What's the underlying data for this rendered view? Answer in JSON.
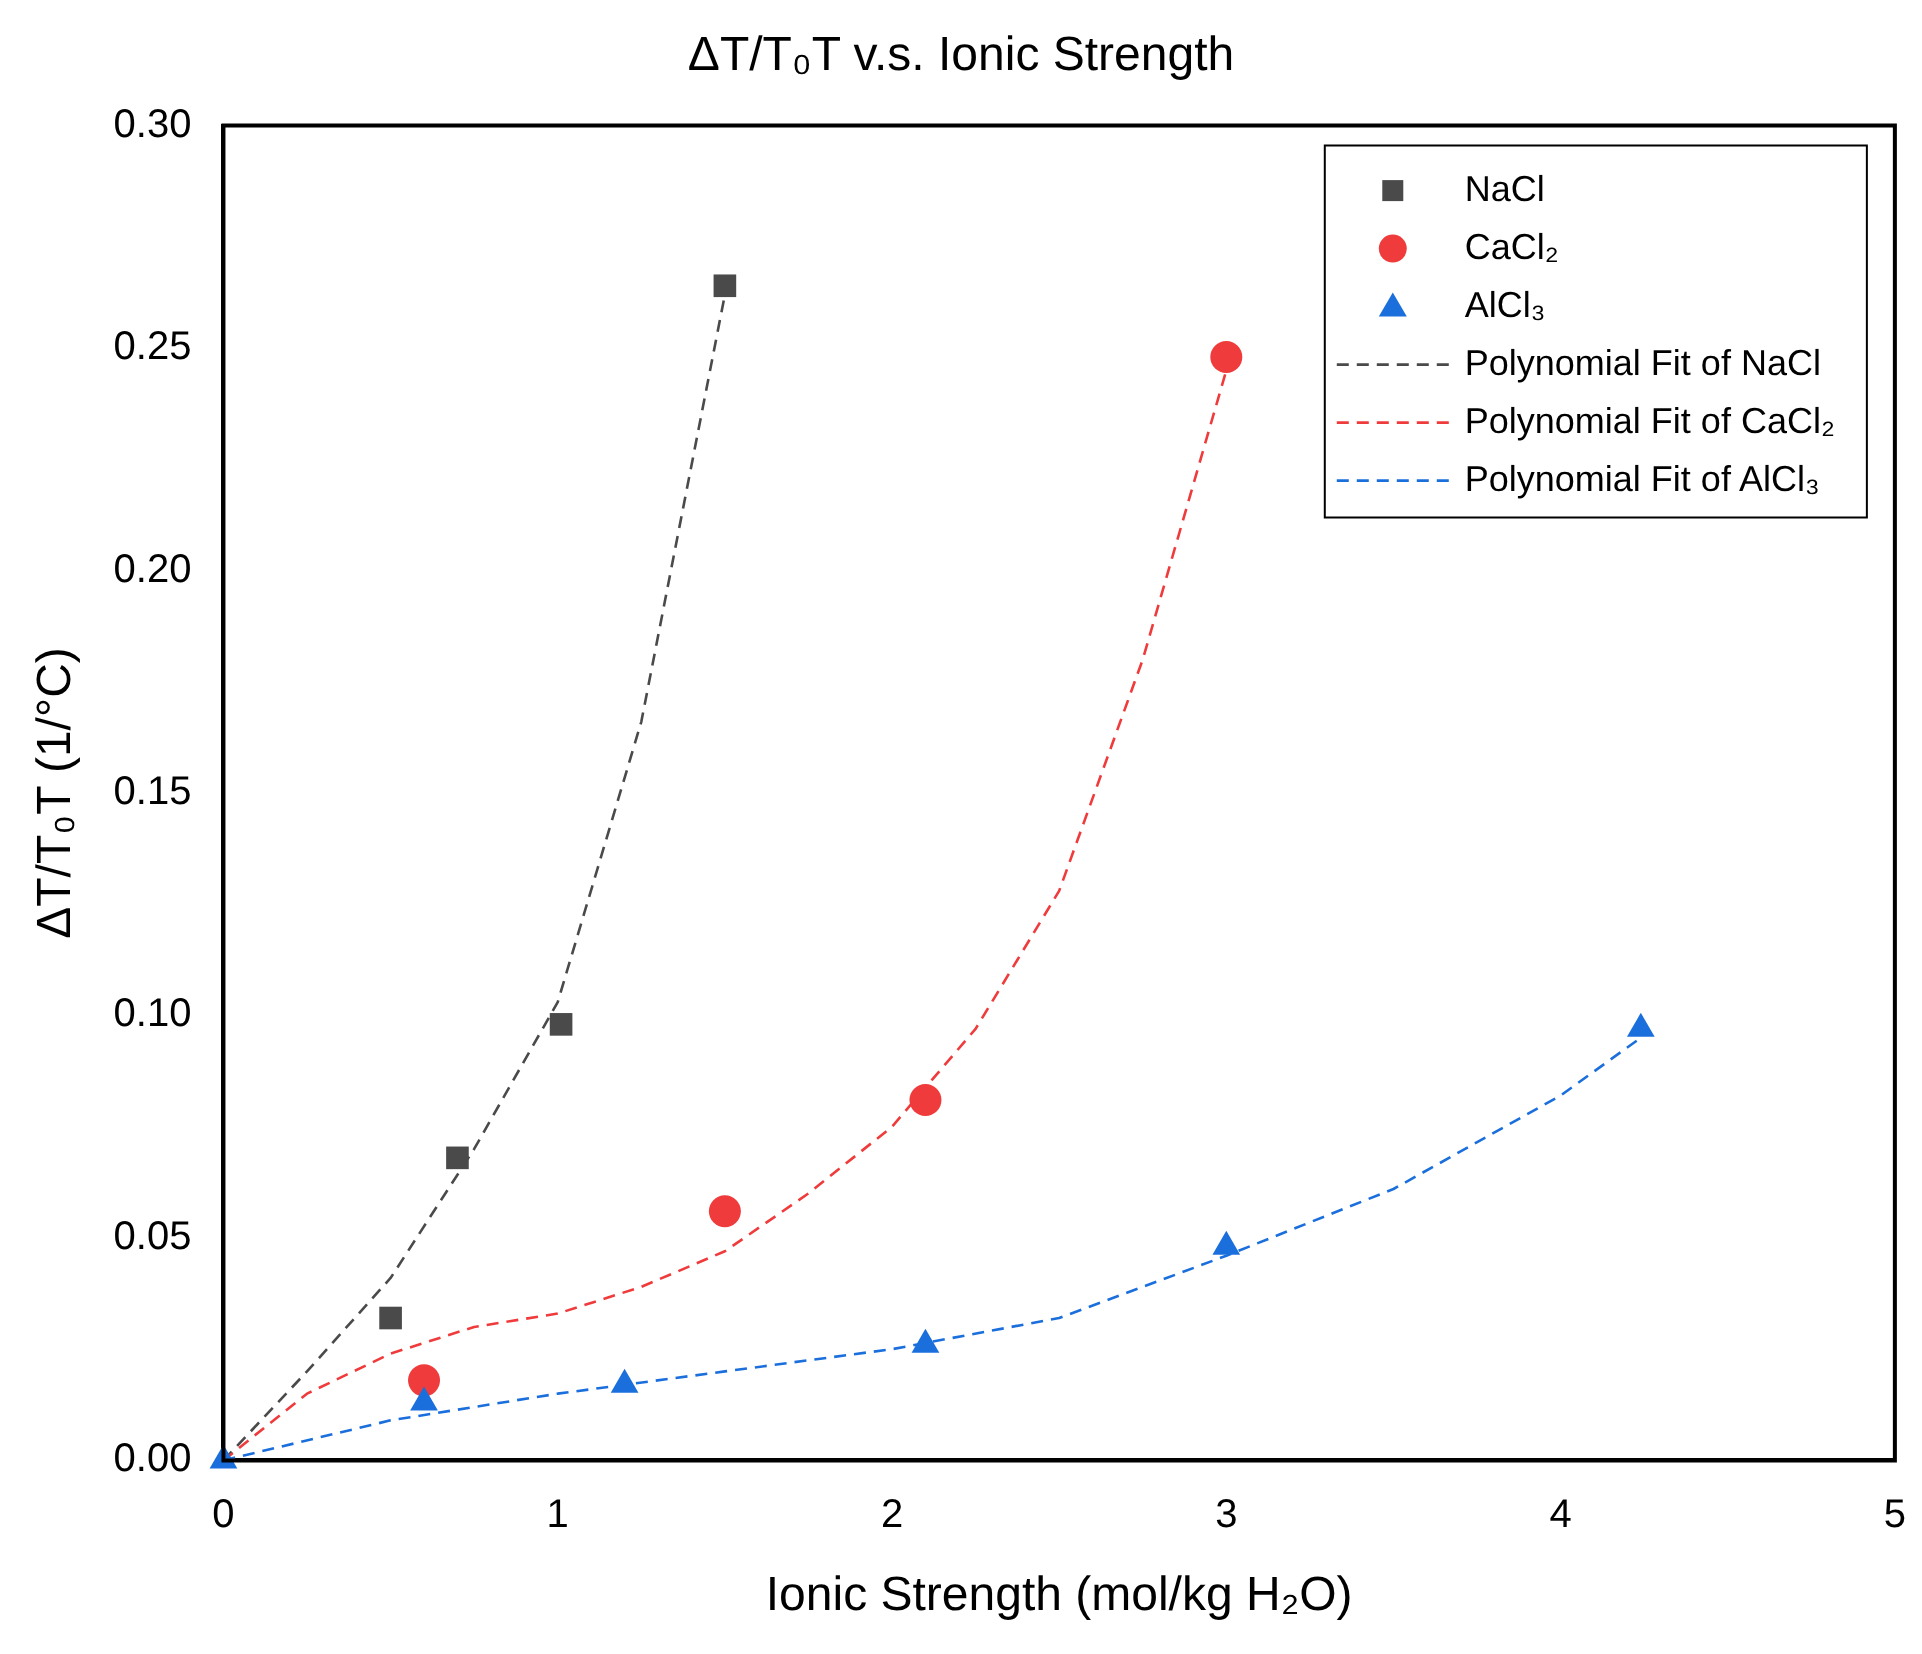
{
  "chart_data": {
    "type": "scatter",
    "title": "ΔT/T₀T v.s. Ionic Strength",
    "xlabel": "Ionic Strength (mol/kg H₂O)",
    "ylabel": "ΔT/T₀T (1/°C)",
    "xlim": [
      0,
      5
    ],
    "xticks": [
      0,
      1,
      2,
      3,
      4,
      5
    ],
    "ylim": [
      0,
      0.3
    ],
    "yticks": [
      {
        "value": 0,
        "label": "0.00"
      },
      {
        "value": 0.05,
        "label": "0.05"
      },
      {
        "value": 0.1,
        "label": "0.10"
      },
      {
        "value": 0.15,
        "label": "0.15"
      },
      {
        "value": 0.2,
        "label": "0.20"
      },
      {
        "value": 0.25,
        "label": "0.25"
      },
      {
        "value": 0.3,
        "label": "0.30"
      }
    ],
    "grid": false,
    "legend": "top right",
    "series": [
      {
        "name": "NaCl",
        "type": "scatter",
        "marker": "square",
        "color": "#4a4a4a",
        "x": [
          0.5,
          0.7,
          1.01,
          1.5
        ],
        "values": [
          0.032,
          0.068,
          0.098,
          0.264
        ]
      },
      {
        "name": "CaCl₂",
        "type": "scatter",
        "marker": "circle",
        "color": "#ef3b3b",
        "x": [
          0.6,
          1.5,
          2.1,
          3.0
        ],
        "values": [
          0.018,
          0.056,
          0.081,
          0.248
        ]
      },
      {
        "name": "AlCl₃",
        "type": "scatter",
        "marker": "triangle",
        "color": "#1b6fdc",
        "x": [
          0,
          0.6,
          1.2,
          2.1,
          3.0,
          4.24
        ],
        "values": [
          0,
          0.013,
          0.017,
          0.026,
          0.048,
          0.097
        ]
      },
      {
        "name": "Polynomial Fit of NaCl",
        "type": "line",
        "marker": "none",
        "line_style": "dashed",
        "color": "#4a4a4a",
        "x": [
          0,
          0.25,
          0.5,
          0.75,
          1.0,
          1.25,
          1.5
        ],
        "values": [
          0,
          0.02,
          0.041,
          0.07,
          0.103,
          0.166,
          0.262
        ]
      },
      {
        "name": "Polynomial Fit of CaCl₂",
        "type": "line",
        "marker": "none",
        "line_style": "dashed",
        "color": "#ef3b3b",
        "x": [
          0,
          0.25,
          0.5,
          0.75,
          1.0,
          1.25,
          1.5,
          1.75,
          2.0,
          2.25,
          2.5,
          2.75,
          3.0
        ],
        "values": [
          0,
          0.015,
          0.024,
          0.03,
          0.033,
          0.039,
          0.047,
          0.06,
          0.075,
          0.097,
          0.128,
          0.18,
          0.245
        ]
      },
      {
        "name": "Polynomial Fit of AlCl₃",
        "type": "line",
        "marker": "none",
        "line_style": "dashed",
        "color": "#1b6fdc",
        "x": [
          0,
          0.5,
          1.0,
          1.5,
          2.0,
          2.5,
          3.0,
          3.5,
          4.0,
          4.24
        ],
        "values": [
          0,
          0.009,
          0.015,
          0.02,
          0.025,
          0.032,
          0.046,
          0.061,
          0.082,
          0.095
        ]
      }
    ]
  }
}
